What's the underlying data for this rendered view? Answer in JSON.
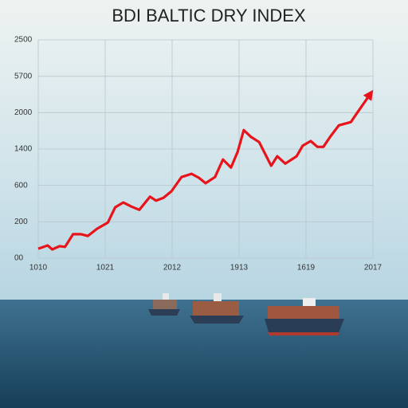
{
  "chart_data": {
    "type": "line",
    "title": "BDI BALTIC DRY INDEX",
    "x": [
      0,
      0.14,
      0.21,
      0.32,
      0.4,
      0.52,
      0.64,
      0.74,
      0.88,
      1.04,
      1.15,
      1.27,
      1.39,
      1.51,
      1.67,
      1.76,
      1.87,
      1.99,
      2.14,
      2.29,
      2.4,
      2.5,
      2.64,
      2.76,
      2.88,
      2.98,
      3.07,
      3.18,
      3.3,
      3.48,
      3.57,
      3.69,
      3.86,
      3.95,
      4.07,
      4.17,
      4.26,
      4.36,
      4.49,
      4.67,
      4.76,
      4.96
    ],
    "series": [
      {
        "color": "#e8141b",
        "values": [
          0.26,
          0.35,
          0.24,
          0.33,
          0.31,
          0.66,
          0.66,
          0.61,
          0.81,
          0.98,
          1.4,
          1.53,
          1.42,
          1.33,
          1.69,
          1.58,
          1.66,
          1.84,
          2.23,
          2.32,
          2.21,
          2.06,
          2.23,
          2.71,
          2.49,
          2.93,
          3.52,
          3.33,
          3.19,
          2.54,
          2.8,
          2.6,
          2.8,
          3.09,
          3.22,
          3.06,
          3.06,
          3.33,
          3.65,
          3.74,
          3.98,
          4.51
        ]
      }
    ],
    "xlim": [
      0,
      5
    ],
    "xticks": [
      {
        "value": 0,
        "label": "1010"
      },
      {
        "value": 1,
        "label": "1021"
      },
      {
        "value": 2,
        "label": "2012"
      },
      {
        "value": 3,
        "label": "1913"
      },
      {
        "value": 4,
        "label": "1619"
      },
      {
        "value": 5,
        "label": "2017"
      }
    ],
    "ylim": [
      0,
      6
    ],
    "yticks": [
      {
        "value": 0,
        "label": "00"
      },
      {
        "value": 1,
        "label": "200"
      },
      {
        "value": 2,
        "label": "600"
      },
      {
        "value": 3,
        "label": "1400"
      },
      {
        "value": 4,
        "label": "2000"
      },
      {
        "value": 5,
        "label": "5700"
      },
      {
        "value": 6,
        "label": "2500"
      }
    ],
    "grid": true
  }
}
